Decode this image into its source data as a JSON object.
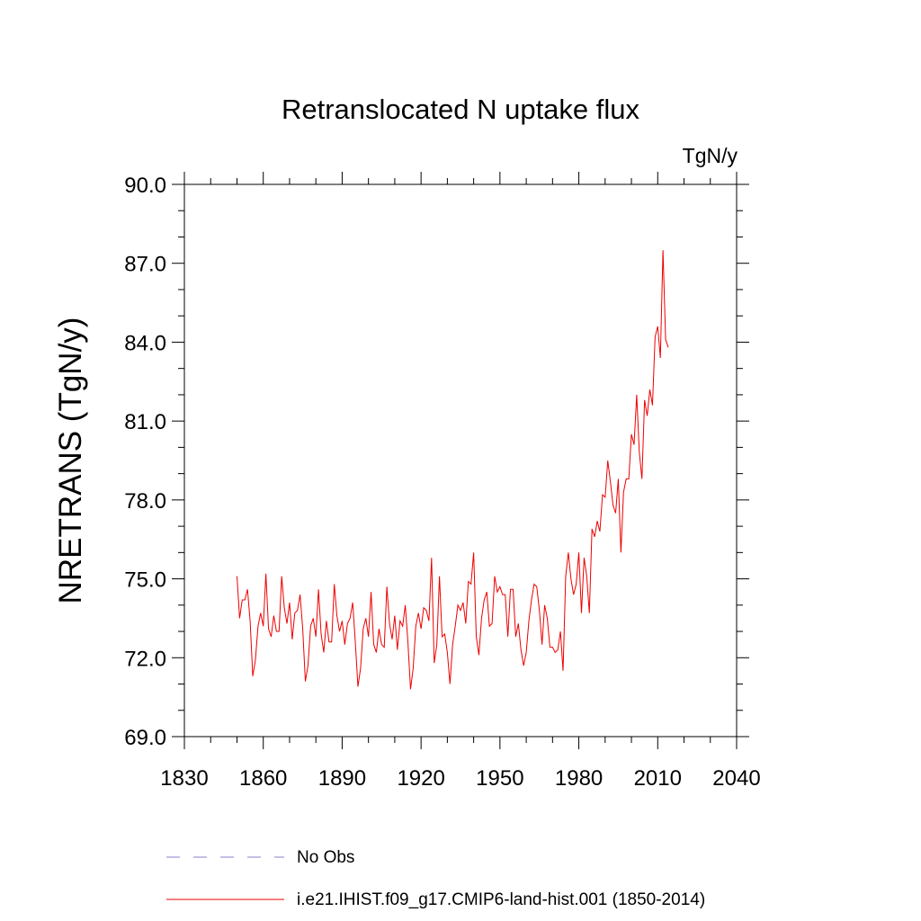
{
  "chart_data": {
    "type": "line",
    "title": "Retranslocated N uptake flux",
    "units_label": "TgN/y",
    "ylabel": "NRETRANS  (TgN/y)",
    "xlabel": "",
    "xlim": [
      1830,
      2040
    ],
    "ylim": [
      69.0,
      90.0
    ],
    "x_ticks": [
      1830,
      1860,
      1890,
      1920,
      1950,
      1980,
      2010,
      2040
    ],
    "x_tick_labels": [
      "1830",
      "1860",
      "1890",
      "1920",
      "1950",
      "1980",
      "2010",
      "2040"
    ],
    "y_ticks": [
      69,
      72,
      75,
      78,
      81,
      84,
      87,
      90
    ],
    "y_tick_labels": [
      "69.0",
      "72.0",
      "75.0",
      "78.0",
      "81.0",
      "84.0",
      "87.0",
      "90.0"
    ],
    "grid": false,
    "legend_position": "bottom",
    "legend": [
      {
        "name": "No Obs",
        "color": "#8a82c8",
        "style": "dashed"
      },
      {
        "name": "i.e21.IHIST.f09_g17.CMIP6-land-hist.001 (1850-2014)",
        "color": "#ee0000",
        "style": "solid"
      }
    ],
    "series": [
      {
        "name": "i.e21.IHIST.f09_g17.CMIP6-land-hist.001 (1850-2014)",
        "color": "#ee0000",
        "x_start": 1850,
        "x_step": 1,
        "values": [
          75.1,
          73.5,
          74.2,
          74.2,
          74.6,
          73.4,
          71.3,
          71.9,
          73.2,
          73.7,
          73.2,
          75.2,
          73.1,
          72.8,
          73.6,
          73.0,
          73.0,
          75.1,
          73.9,
          73.3,
          74.1,
          72.7,
          73.7,
          73.8,
          74.4,
          73.1,
          71.1,
          71.7,
          73.2,
          73.5,
          72.8,
          74.6,
          72.9,
          72.2,
          73.4,
          72.6,
          72.6,
          74.8,
          73.6,
          73.0,
          73.4,
          72.5,
          73.3,
          73.5,
          74.1,
          72.6,
          70.9,
          71.6,
          73.1,
          73.5,
          72.8,
          74.5,
          72.5,
          72.2,
          73.1,
          72.5,
          72.4,
          74.7,
          73.3,
          72.7,
          73.6,
          72.3,
          73.4,
          73.2,
          74.0,
          72.6,
          70.8,
          71.6,
          73.2,
          73.7,
          73.1,
          73.9,
          73.8,
          73.4,
          75.8,
          71.8,
          72.5,
          75.1,
          72.8,
          72.9,
          72.2,
          71.0,
          72.5,
          73.2,
          74.0,
          73.8,
          74.1,
          73.3,
          74.9,
          74.8,
          76.0,
          72.8,
          72.1,
          73.5,
          74.2,
          74.5,
          73.2,
          73.3,
          75.1,
          74.5,
          74.7,
          74.4,
          74.4,
          72.8,
          74.6,
          74.6,
          72.8,
          73.3,
          72.3,
          71.7,
          72.2,
          73.4,
          74.2,
          74.8,
          74.7,
          73.8,
          72.5,
          74.0,
          73.5,
          72.4,
          72.4,
          72.2,
          72.3,
          73.0,
          71.5,
          75.1,
          76.0,
          75.0,
          74.4,
          74.8,
          76.0,
          73.7,
          75.8,
          75.1,
          73.7,
          76.9,
          76.6,
          77.2,
          76.8,
          78.2,
          78.1,
          79.5,
          78.7,
          77.8,
          77.5,
          78.8,
          76.0,
          78.3,
          78.8,
          78.8,
          80.5,
          80.1,
          82.0,
          79.8,
          78.8,
          81.8,
          81.2,
          82.2,
          81.6,
          84.2,
          84.6,
          83.4,
          87.5,
          84.1,
          83.8
        ]
      }
    ]
  }
}
